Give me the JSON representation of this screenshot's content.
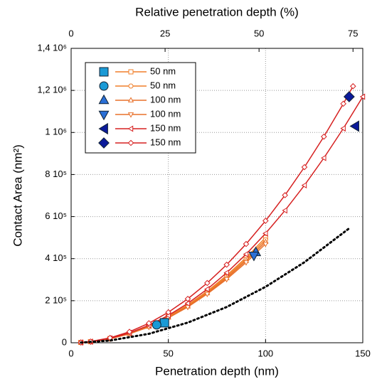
{
  "chart_data": {
    "type": "line",
    "xlabel": "Penetration depth (nm)",
    "ylabel": "Contact Area (nm²)",
    "x2label": "Relative penetration depth (%)",
    "xlim": [
      0,
      150
    ],
    "xticks": [
      0,
      50,
      100,
      150
    ],
    "x2lim": [
      0,
      77.6
    ],
    "x2ticks": [
      0,
      25,
      50,
      75
    ],
    "ylim": [
      0,
      1400000
    ],
    "yticks": [
      {
        "value": 0,
        "label": "0"
      },
      {
        "value": 200000,
        "label": "2 10⁵"
      },
      {
        "value": 400000,
        "label": "4 10⁵"
      },
      {
        "value": 600000,
        "label": "6 10⁵"
      },
      {
        "value": 800000,
        "label": "8 10⁵"
      },
      {
        "value": 1000000,
        "label": "1 10⁶"
      },
      {
        "value": 1200000,
        "label": "1,2 10⁶"
      },
      {
        "value": 1400000,
        "label": "1,4 10⁶"
      }
    ],
    "grid": true,
    "series": [
      {
        "name": "50 nm",
        "color": "#f07f2a",
        "marker": "square",
        "point_color": "#1a9ad6",
        "x": [
          5,
          10,
          20,
          30,
          40,
          50,
          60,
          70,
          80,
          90,
          100
        ],
        "values": [
          1500,
          5000,
          20000,
          45000,
          80000,
          125000,
          180000,
          245000,
          320000,
          405000,
          500000
        ],
        "point_x": 48,
        "point_y": 95000
      },
      {
        "name": "50 nm",
        "color": "#f07f2a",
        "marker": "circle",
        "point_color": "#1a9ad6",
        "x": [
          5,
          10,
          20,
          30,
          40,
          50,
          60,
          70,
          80,
          90,
          100
        ],
        "values": [
          1400,
          4900,
          19500,
          44000,
          78000,
          122000,
          176000,
          240000,
          314000,
          397000,
          490000
        ],
        "point_x": 44,
        "point_y": 85000
      },
      {
        "name": "100 nm",
        "color": "#e8702a",
        "marker": "triangle-up",
        "point_color": "#2a6fd6",
        "x": [
          5,
          10,
          20,
          30,
          40,
          50,
          60,
          70,
          80,
          90,
          100
        ],
        "values": [
          1300,
          4800,
          19000,
          43000,
          77000,
          120000,
          173000,
          236000,
          308000,
          390000,
          480000
        ],
        "point_x": 95,
        "point_y": 430000
      },
      {
        "name": "100 nm",
        "color": "#e8702a",
        "marker": "triangle-down",
        "point_color": "#2a6fd6",
        "x": [
          5,
          10,
          20,
          30,
          40,
          50,
          60,
          70,
          80,
          90,
          100
        ],
        "values": [
          1200,
          4700,
          18500,
          42000,
          75000,
          118000,
          170000,
          232000,
          302000,
          382000,
          470000
        ],
        "point_x": 94,
        "point_y": 415000
      },
      {
        "name": "150 nm",
        "color": "#d62020",
        "marker": "triangle-left",
        "point_color": "#0b1a9a",
        "x": [
          5,
          10,
          20,
          30,
          40,
          50,
          60,
          70,
          80,
          90,
          100,
          110,
          120,
          130,
          140,
          150
        ],
        "values": [
          1300,
          5200,
          20800,
          46800,
          83200,
          130000,
          187200,
          254800,
          332800,
          421200,
          520000,
          629200,
          748800,
          878800,
          1019200,
          1170000
        ],
        "point_x": 146,
        "point_y": 1030000
      },
      {
        "name": "150 nm",
        "color": "#d62020",
        "marker": "diamond",
        "point_color": "#0b1a9a",
        "x": [
          5,
          10,
          20,
          30,
          40,
          50,
          60,
          70,
          80,
          90,
          100,
          110,
          120,
          130,
          140,
          145
        ],
        "values": [
          1450,
          5800,
          23200,
          52200,
          92800,
          145000,
          208800,
          284200,
          371200,
          469800,
          580000,
          701800,
          835200,
          980200,
          1136800,
          1220000
        ],
        "point_x": 143,
        "point_y": 1170000
      },
      {
        "color": "#000000",
        "style": "dotted",
        "x": [
          5,
          20,
          40,
          60,
          80,
          100,
          120,
          143
        ],
        "values": [
          700,
          10600,
          42600,
          95800,
          170000,
          266000,
          383000,
          544000
        ]
      }
    ]
  }
}
